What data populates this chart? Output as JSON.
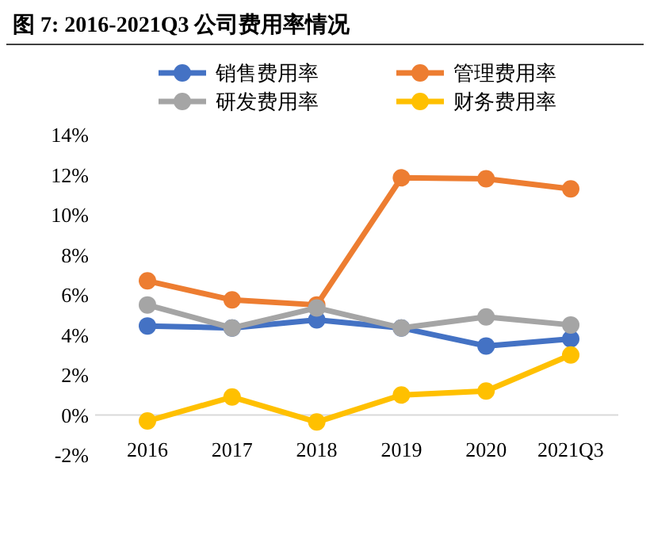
{
  "chart_data": {
    "type": "line",
    "title": "图 7: 2016-2021Q3 公司费用率情况",
    "categories": [
      "2016",
      "2017",
      "2018",
      "2019",
      "2020",
      "2021Q3"
    ],
    "series": [
      {
        "name": "销售费用率",
        "color": "#4472c4",
        "values": [
          4.45,
          4.35,
          4.75,
          4.35,
          3.45,
          3.8
        ]
      },
      {
        "name": "管理费用率",
        "color": "#ed7d31",
        "values": [
          6.7,
          5.75,
          5.5,
          11.85,
          11.8,
          11.3
        ]
      },
      {
        "name": "研发费用率",
        "color": "#a5a5a5",
        "values": [
          5.5,
          4.35,
          5.35,
          4.35,
          4.9,
          4.5
        ]
      },
      {
        "name": "财务费用率",
        "color": "#ffc000",
        "values": [
          -0.3,
          0.9,
          -0.35,
          1.0,
          1.2,
          3.0
        ]
      }
    ],
    "ylim": [
      -2,
      14
    ],
    "yticks": [
      {
        "value": -2,
        "label": "-2%"
      },
      {
        "value": 0,
        "label": "0%"
      },
      {
        "value": 2,
        "label": "2%"
      },
      {
        "value": 4,
        "label": "4%"
      },
      {
        "value": 6,
        "label": "6%"
      },
      {
        "value": 8,
        "label": "8%"
      },
      {
        "value": 10,
        "label": "10%"
      },
      {
        "value": 12,
        "label": "12%"
      },
      {
        "value": 14,
        "label": "14%"
      }
    ],
    "grid": false,
    "legend": "top",
    "marker": "circle",
    "line_style": "solid"
  }
}
